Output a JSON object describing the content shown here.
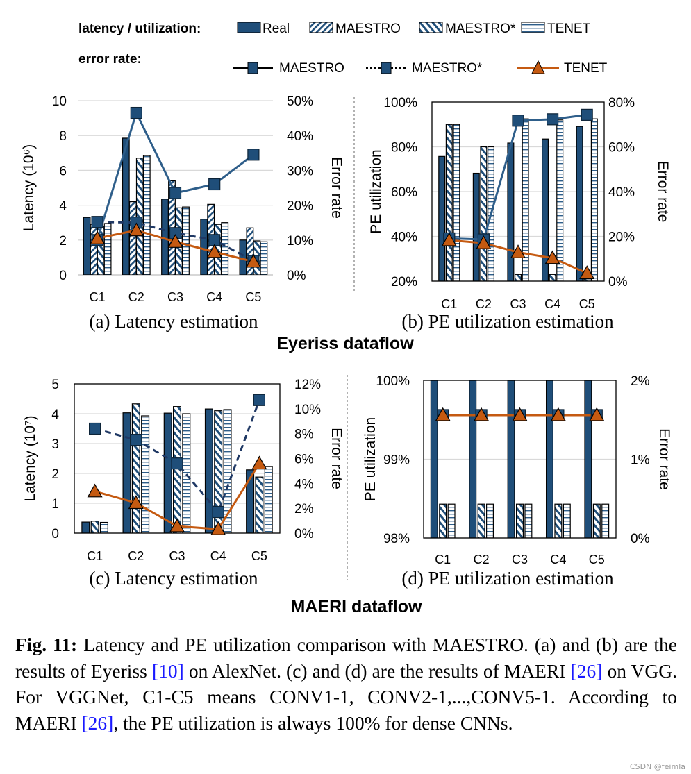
{
  "legend": {
    "bars_heading": "latency / utilization:",
    "lines_heading": "error rate:",
    "bars": [
      "Real",
      "MAESTRO",
      "MAESTRO*",
      "TENET"
    ],
    "lines": [
      "MAESTRO",
      "MAESTRO*",
      "TENET"
    ]
  },
  "group_titles": [
    "Eyeriss dataflow",
    "MAERI dataflow"
  ],
  "colors": {
    "real": "#1F4E79",
    "hatch": "#1F4E79",
    "maestro_line": "#2E5E8A",
    "maestro_star_line": "#1F3864",
    "tenet_line": "#C55A11",
    "grid": "#D9D9D9"
  },
  "chart_data": [
    {
      "type": "bar+line",
      "caption": "(a) Latency estimation",
      "categories": [
        "C1",
        "C2",
        "C3",
        "C4",
        "C5"
      ],
      "ylabel": "Latency (10⁶)",
      "y2label": "Error rate",
      "ylim": [
        0,
        10
      ],
      "y2lim": [
        0,
        50
      ],
      "yticks": [
        "0",
        "2",
        "4",
        "6",
        "8",
        "10"
      ],
      "y2ticks": [
        "0%",
        "10%",
        "20%",
        "30%",
        "40%",
        "50%"
      ],
      "grid": true,
      "bar_series": [
        {
          "name": "Real",
          "style": "solid",
          "values": [
            3.3,
            7.85,
            4.35,
            3.2,
            2.0
          ]
        },
        {
          "name": "MAESTRO",
          "style": "fwd",
          "values": [
            2.9,
            4.2,
            5.4,
            4.05,
            2.7
          ]
        },
        {
          "name": "MAESTRO*",
          "style": "back",
          "values": [
            2.8,
            6.7,
            3.85,
            2.9,
            1.95
          ]
        },
        {
          "name": "TENET",
          "style": "horiz",
          "values": [
            2.95,
            6.85,
            3.9,
            3.0,
            1.9
          ]
        }
      ],
      "line_series": [
        {
          "name": "MAESTRO",
          "style": "solid",
          "marker": "square",
          "values": [
            10,
            46.5,
            23.5,
            26,
            34.5
          ]
        },
        {
          "name": "MAESTRO*",
          "style": "dashed",
          "marker": "square",
          "values": [
            15.2,
            15,
            12,
            10,
            4
          ]
        },
        {
          "name": "TENET",
          "style": "orange",
          "marker": "triangle",
          "values": [
            10.5,
            12.8,
            9.5,
            6.6,
            3.8
          ]
        }
      ]
    },
    {
      "type": "bar+line",
      "caption": "(b) PE utilization estimation",
      "categories": [
        "C1",
        "C2",
        "C3",
        "C4",
        "C5"
      ],
      "ylabel": "PE utilization",
      "y2label": "Error rate",
      "ylim": [
        20,
        100
      ],
      "y2lim": [
        0,
        80
      ],
      "yticks": [
        "20%",
        "40%",
        "60%",
        "80%",
        "100%"
      ],
      "y2ticks": [
        "0%",
        "20%",
        "40%",
        "60%",
        "80%"
      ],
      "grid": true,
      "bar_series": [
        {
          "name": "Real",
          "style": "solid",
          "values": [
            75.7,
            68.2,
            81.7,
            83.5,
            89.1
          ]
        },
        {
          "name": "MAESTRO*",
          "style": "back",
          "values": [
            90,
            80,
            23,
            23,
            21
          ]
        },
        {
          "name": "TENET",
          "style": "horiz",
          "values": [
            90,
            80,
            92.5,
            92,
            92.5
          ]
        }
      ],
      "line_series": [
        {
          "name": "MAESTRO",
          "style": "solid",
          "marker": "square",
          "values": [
            19.1,
            18.6,
            71.7,
            72.3,
            74.3
          ]
        },
        {
          "name": "TENET",
          "style": "orange",
          "marker": "triangle",
          "values": [
            18.3,
            17.0,
            12.9,
            10.3,
            3.6
          ]
        }
      ]
    },
    {
      "type": "bar+line",
      "caption": "(c) Latency estimation",
      "categories": [
        "C1",
        "C2",
        "C3",
        "C4",
        "C5"
      ],
      "ylabel": "Latency (10⁷)",
      "y2label": "Error rate",
      "ylim": [
        0,
        5
      ],
      "y2lim": [
        0,
        12
      ],
      "yticks": [
        "0",
        "1",
        "2",
        "3",
        "4",
        "5"
      ],
      "y2ticks": [
        "0%",
        "2%",
        "4%",
        "6%",
        "8%",
        "10%",
        "12%"
      ],
      "grid": true,
      "bar_series": [
        {
          "name": "Real",
          "style": "solid",
          "values": [
            0.37,
            4.03,
            4.02,
            4.16,
            2.12
          ]
        },
        {
          "name": "MAESTRO*",
          "style": "back",
          "values": [
            0.4,
            4.33,
            4.24,
            4.1,
            1.88
          ]
        },
        {
          "name": "TENET",
          "style": "horiz",
          "values": [
            0.36,
            3.93,
            4.0,
            4.14,
            2.23
          ]
        }
      ],
      "line_series": [
        {
          "name": "MAESTRO*",
          "style": "dashed",
          "marker": "square",
          "values": [
            8.4,
            7.5,
            5.6,
            1.7,
            10.7
          ]
        },
        {
          "name": "TENET",
          "style": "orange",
          "marker": "triangle",
          "values": [
            3.36,
            2.43,
            0.56,
            0.32,
            5.6
          ]
        }
      ]
    },
    {
      "type": "bar+line",
      "caption": "(d) PE utilization estimation",
      "categories": [
        "C1",
        "C2",
        "C3",
        "C4",
        "C5"
      ],
      "ylabel": "PE utilization",
      "y2label": "Error rate",
      "ylim": [
        98,
        100
      ],
      "y2lim": [
        0,
        2
      ],
      "yticks": [
        "98%",
        "99%",
        "100%"
      ],
      "y2ticks": [
        "0%",
        "1%",
        "2%"
      ],
      "grid": true,
      "bar_series": [
        {
          "name": "Real",
          "style": "solid",
          "values": [
            100,
            100,
            100,
            100,
            100
          ]
        },
        {
          "name": "MAESTRO*",
          "style": "back",
          "values": [
            98.43,
            98.43,
            98.43,
            98.43,
            98.43
          ]
        },
        {
          "name": "TENET",
          "style": "horiz",
          "values": [
            98.43,
            98.43,
            98.43,
            98.43,
            98.43
          ]
        }
      ],
      "line_series": [
        {
          "name": "MAESTRO*",
          "style": "dashed",
          "marker": "square",
          "values": [
            1.56,
            1.56,
            1.56,
            1.56,
            1.56
          ]
        },
        {
          "name": "TENET",
          "style": "orange",
          "marker": "triangle",
          "values": [
            1.56,
            1.56,
            1.56,
            1.56,
            1.56
          ]
        }
      ]
    }
  ],
  "figure_caption": {
    "label": "Fig. 11:",
    "t1": " Latency and PE utilization comparison with MAESTRO. (a) and (b) are the results of Eyeriss ",
    "ref1": "[10]",
    "t2": " on AlexNet. (c) and (d) are the results of MAERI ",
    "ref2": "[26]",
    "t3": " on VGG. For VGGNet, C1-C5 means CONV1-1, CONV2-1,...,CONV5-1. According to MAERI ",
    "ref3": "[26]",
    "t4": ", the PE utilization is always 100% for dense CNNs."
  },
  "watermark": "CSDN @feimla"
}
